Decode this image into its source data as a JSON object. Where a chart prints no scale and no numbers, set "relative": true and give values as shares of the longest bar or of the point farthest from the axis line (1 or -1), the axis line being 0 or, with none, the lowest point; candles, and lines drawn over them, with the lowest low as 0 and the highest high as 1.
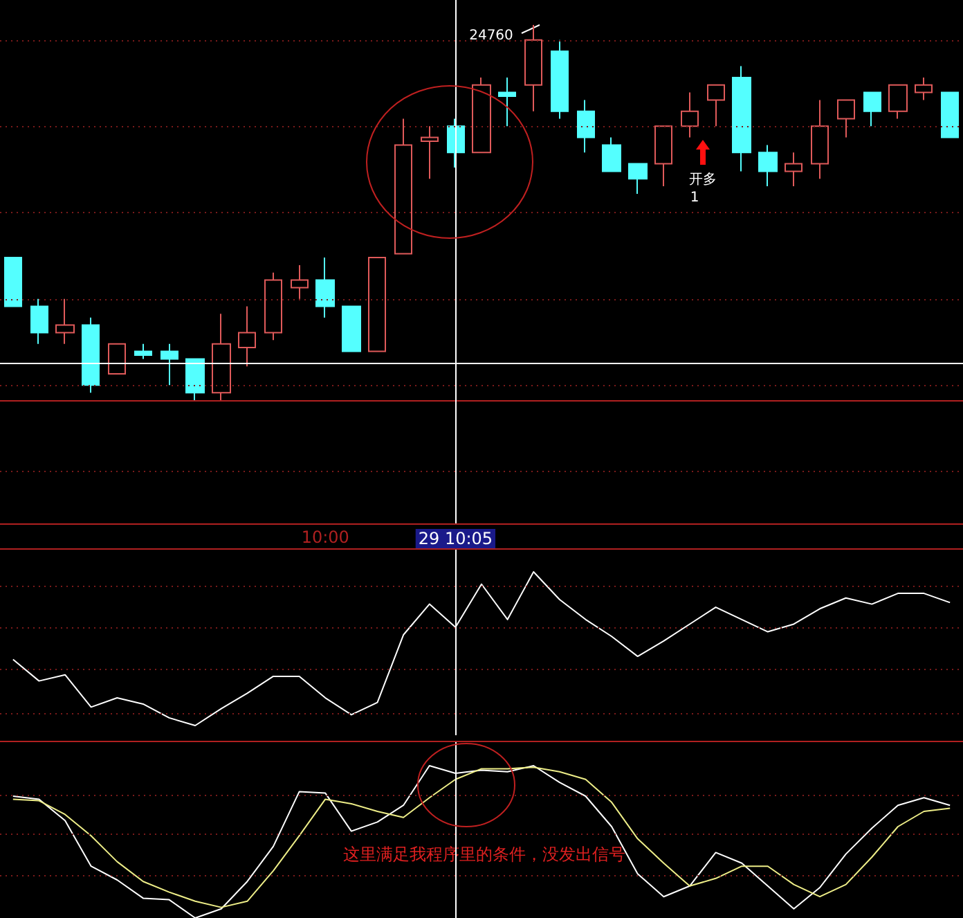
{
  "chart_data": [
    {
      "type": "candlestick",
      "relative": true,
      "tick_labels": "x",
      "categories": [
        null,
        null,
        null,
        null,
        null,
        null,
        null,
        null,
        null,
        null,
        null,
        null,
        "10:00",
        null,
        null,
        null,
        null,
        "29 10:05",
        null,
        null,
        null,
        null,
        null,
        null,
        null,
        null,
        null,
        null,
        null,
        null,
        null,
        null,
        null,
        null,
        null,
        null,
        null
      ],
      "ohlc": [
        [
          0.38,
          0.38,
          0.25,
          0.25
        ],
        [
          0.25,
          0.27,
          0.15,
          0.18
        ],
        [
          0.18,
          0.27,
          0.15,
          0.2
        ],
        [
          0.2,
          0.22,
          0.02,
          0.04
        ],
        [
          0.07,
          0.15,
          0.07,
          0.15
        ],
        [
          0.13,
          0.15,
          0.11,
          0.12
        ],
        [
          0.13,
          0.15,
          0.04,
          0.11
        ],
        [
          0.11,
          0.11,
          0,
          0.02
        ],
        [
          0.02,
          0.23,
          0,
          0.15
        ],
        [
          0.14,
          0.25,
          0.09,
          0.18
        ],
        [
          0.18,
          0.34,
          0.16,
          0.32
        ],
        [
          0.3,
          0.36,
          0.27,
          0.32
        ],
        [
          0.32,
          0.38,
          0.22,
          0.25
        ],
        [
          0.25,
          0.25,
          0.13,
          0.13
        ],
        [
          0.13,
          0.38,
          0.13,
          0.38
        ],
        [
          0.39,
          0.75,
          0.39,
          0.68
        ],
        [
          0.69,
          0.73,
          0.59,
          0.7
        ],
        [
          0.73,
          0.75,
          0.62,
          0.66
        ],
        [
          0.66,
          0.86,
          0.66,
          0.84
        ],
        [
          0.82,
          0.86,
          0.73,
          0.81
        ],
        [
          0.84,
          1,
          0.77,
          0.96
        ],
        [
          0.93,
          0.96,
          0.75,
          0.77
        ],
        [
          0.77,
          0.8,
          0.66,
          0.7
        ],
        [
          0.68,
          0.7,
          0.61,
          0.61
        ],
        [
          0.63,
          0.63,
          0.55,
          0.59
        ],
        [
          0.63,
          0.73,
          0.57,
          0.73
        ],
        [
          0.73,
          0.82,
          0.7,
          0.77
        ],
        [
          0.8,
          0.84,
          0.73,
          0.84
        ],
        [
          0.86,
          0.89,
          0.61,
          0.66
        ],
        [
          0.66,
          0.68,
          0.57,
          0.61
        ],
        [
          0.61,
          0.66,
          0.57,
          0.63
        ],
        [
          0.63,
          0.8,
          0.59,
          0.73
        ],
        [
          0.75,
          0.8,
          0.7,
          0.8
        ],
        [
          0.82,
          0.82,
          0.73,
          0.77
        ],
        [
          0.77,
          0.84,
          0.75,
          0.84
        ],
        [
          0.82,
          0.86,
          0.8,
          0.84
        ],
        [
          0.82,
          0.82,
          0.7,
          0.7
        ]
      ],
      "colors": [
        "#54ffff",
        "#54ffff",
        "#e05a5a",
        "#54ffff",
        "#e05a5a",
        "#54ffff",
        "#54ffff",
        "#54ffff",
        "#e05a5a",
        "#e05a5a",
        "#e05a5a",
        "#e05a5a",
        "#54ffff",
        "#54ffff",
        "#e05a5a",
        "#e05a5a",
        "#e05a5a",
        "#54ffff",
        "#e05a5a",
        "#54ffff",
        "#e05a5a",
        "#54ffff",
        "#54ffff",
        "#54ffff",
        "#54ffff",
        "#e05a5a",
        "#e05a5a",
        "#e05a5a",
        "#54ffff",
        "#54ffff",
        "#e05a5a",
        "#e05a5a",
        "#e05a5a",
        "#54ffff",
        "#e05a5a",
        "#e05a5a",
        "#54ffff"
      ],
      "ref_lines": [
        {
          "axis": "x",
          "value": "29 10:05",
          "color": "#ffffff"
        },
        {
          "axis": "y",
          "value": 0.1,
          "color": "#ffffff"
        },
        {
          "axis": "y",
          "value": 0.96,
          "color": "#7a1a1a",
          "line_style": "dotted"
        },
        {
          "axis": "y",
          "value": 0.73,
          "color": "#7a1a1a",
          "line_style": "dotted"
        },
        {
          "axis": "y",
          "value": 0.5,
          "color": "#7a1a1a",
          "line_style": "dotted"
        },
        {
          "axis": "y",
          "value": 0.27,
          "color": "#7a1a1a",
          "line_style": "dotted"
        },
        {
          "axis": "y",
          "value": 0.04,
          "color": "#7a1a1a",
          "line_style": "dotted"
        },
        {
          "axis": "y",
          "value": -0.19,
          "color": "#7a1a1a",
          "line_style": "dotted"
        }
      ],
      "annotations": [
        "24760",
        "开多",
        "1"
      ]
    },
    {
      "type": "line",
      "relative": true,
      "tick_labels": false,
      "categories": [
        null,
        null,
        null,
        null,
        null,
        null,
        null,
        null,
        null,
        null,
        null,
        null,
        "10:00",
        null,
        null,
        null,
        null,
        "29 10:05",
        null,
        null,
        null,
        null,
        null,
        null,
        null,
        null,
        null,
        null,
        null,
        null,
        null,
        null,
        null,
        null,
        null,
        null,
        null
      ],
      "series": [
        {
          "color": "#ffffff",
          "values": [
            0.43,
            0.29,
            0.33,
            0.12,
            0.18,
            0.14,
            0.05,
            0,
            0.11,
            0.21,
            0.32,
            0.32,
            0.18,
            0.07,
            0.15,
            0.59,
            0.79,
            0.64,
            0.92,
            0.69,
            1,
            0.82,
            0.69,
            0.58,
            0.45,
            0.55,
            0.66,
            0.77,
            0.69,
            0.61,
            0.66,
            0.76,
            0.83,
            0.79,
            0.86,
            0.86,
            0.8
          ]
        }
      ],
      "ref_lines": [
        {
          "axis": "x",
          "value": "29 10:05",
          "color": "#ffffff"
        },
        {
          "axis": "y",
          "value": 0.91,
          "color": "#7a1a1a",
          "line_style": "dotted"
        },
        {
          "axis": "y",
          "value": 0.64,
          "color": "#7a1a1a",
          "line_style": "dotted"
        },
        {
          "axis": "y",
          "value": 0.37,
          "color": "#7a1a1a",
          "line_style": "dotted"
        },
        {
          "axis": "y",
          "value": 0.08,
          "color": "#7a1a1a",
          "line_style": "dotted"
        }
      ]
    },
    {
      "type": "line",
      "relative": true,
      "tick_labels": false,
      "categories": [
        null,
        null,
        null,
        null,
        null,
        null,
        null,
        null,
        null,
        null,
        null,
        null,
        "10:00",
        null,
        null,
        null,
        null,
        "29 10:05",
        null,
        null,
        null,
        null,
        null,
        null,
        null,
        null,
        null,
        null,
        null,
        null,
        null,
        null,
        null,
        null,
        null,
        null,
        null
      ],
      "series": [
        {
          "color": "#ffffff",
          "values": [
            0.8,
            0.78,
            0.64,
            0.34,
            0.25,
            0.13,
            0.12,
            0,
            0.06,
            0.24,
            0.47,
            0.83,
            0.82,
            0.57,
            0.63,
            0.74,
            1,
            0.95,
            0.97,
            0.96,
            1,
            0.89,
            0.8,
            0.6,
            0.29,
            0.14,
            0.21,
            0.43,
            0.36,
            0.21,
            0.06,
            0.2,
            0.42,
            0.59,
            0.74,
            0.79,
            0.74
          ]
        },
        {
          "color": "#eeee88",
          "values": [
            0.78,
            0.77,
            0.68,
            0.54,
            0.37,
            0.24,
            0.17,
            0.11,
            0.07,
            0.11,
            0.31,
            0.54,
            0.78,
            0.75,
            0.7,
            0.66,
            0.79,
            0.91,
            0.98,
            0.98,
            0.99,
            0.96,
            0.91,
            0.76,
            0.52,
            0.36,
            0.21,
            0.26,
            0.34,
            0.34,
            0.22,
            0.14,
            0.22,
            0.4,
            0.6,
            0.7,
            0.72
          ]
        }
      ],
      "ref_lines": [
        {
          "axis": "x",
          "value": "29 10:05",
          "color": "#ffffff"
        },
        {
          "axis": "y",
          "value": 0.81,
          "color": "#7a1a1a",
          "line_style": "dotted"
        },
        {
          "axis": "y",
          "value": 0.55,
          "color": "#7a1a1a",
          "line_style": "dotted"
        },
        {
          "axis": "y",
          "value": 0.28,
          "color": "#7a1a1a",
          "line_style": "dotted"
        }
      ],
      "annotations": [
        "这里满足我程序里的条件，没发出信号"
      ]
    }
  ]
}
